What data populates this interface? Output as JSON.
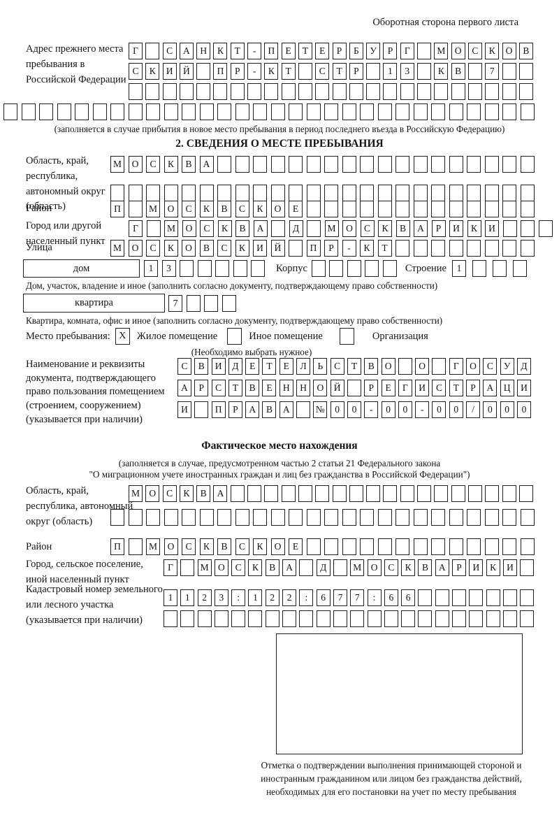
{
  "page": {
    "header_note": "Оборотная сторона первого листа"
  },
  "prev_address": {
    "label": "Адрес прежнего места пребывания в Российской Федерации",
    "row1": {
      "text": "Г САНКТ-ПЕТЕРБУРГ МОСКОВ",
      "cells": 24
    },
    "row2": {
      "text": "СКИЙ ПР-КТ СТР 13 КВ 7",
      "cells": 24
    },
    "row3": {
      "text": "",
      "cells": 24
    },
    "row4": {
      "text": "",
      "cells": 30
    },
    "note": "(заполняется в случае прибытия в новое место пребывания в период последнего въезда в Российскую Федерацию)"
  },
  "section2": {
    "title": "2. СВЕДЕНИЯ О МЕСТЕ ПРЕБЫВАНИЯ",
    "region": {
      "label": "Область, край, республика, автономный округ (область)",
      "row1": {
        "text": "МОСКВА",
        "cells": 24
      },
      "row2": {
        "text": "",
        "cells": 24
      }
    },
    "district": {
      "label": "Район",
      "row": {
        "text": "П МОСКВСКОЕ",
        "cells": 24
      }
    },
    "city": {
      "label": "Город или другой населенный пункт",
      "row": {
        "text": "Г МОСКВА Д МОСКВАРИКИ",
        "cells": 24
      }
    },
    "street": {
      "label": "Улица",
      "row": {
        "text": "МОСКОВСКИЙ ПР-КТ",
        "cells": 24
      }
    },
    "house": {
      "box_label": "дом",
      "row": {
        "text": "13",
        "cells": 7
      },
      "korpus_label": "Корпус",
      "korpus_row": {
        "text": "",
        "cells": 5
      },
      "stroenie_label": "Строение",
      "stroenie_row": {
        "text": "1",
        "cells": 4
      },
      "caption": "Дом, участок, владение и иное (заполнить согласно документу, подтверждающему право собственности)"
    },
    "apartment": {
      "box_label": "квартира",
      "row": {
        "text": "7",
        "cells": 4
      },
      "caption": "Квартира, комната, офис и иное (заполнить согласно документу, подтверждающему право собственности)"
    },
    "stay_type": {
      "label": "Место пребывания:",
      "options": [
        {
          "label": "Жилое помещение",
          "mark": "X"
        },
        {
          "label": "Иное помещение",
          "mark": ""
        },
        {
          "label": "Организация",
          "mark": ""
        }
      ],
      "note": "(Необходимо выбрать нужное)"
    },
    "document": {
      "label": "Наименование и реквизиты документа, подтверждающего право пользования помещением (строением, сооружением) (указывается при наличии)",
      "row1": {
        "text": "СВИДЕТЕЛЬСТВО О ГОСУД",
        "cells": 21
      },
      "row2": {
        "text": "АРСТВЕННОЙ РЕГИСТРАЦИ",
        "cells": 21
      },
      "row3": {
        "text": "И ПРАВА №00-00-00/000",
        "cells": 21
      }
    }
  },
  "actual_location": {
    "title": "Фактическое место нахождения",
    "note_line1": "(заполняется в случае, предусмотренном частью 2 статьи 21 Федерального закона",
    "note_line2": "\"О миграционном учете иностранных граждан и лиц без гражданства в Российской Федерации\")",
    "region": {
      "label": "Область, край, республика, автономный округ (область)",
      "row1": {
        "text": "МОСКВА",
        "cells": 24
      },
      "row2": {
        "text": "",
        "cells": 24
      }
    },
    "district": {
      "label": "Район",
      "row": {
        "text": "П МОСКВСКОЕ",
        "cells": 24
      }
    },
    "city": {
      "label": "Город, сельское поселение, иной населенный пункт",
      "row": {
        "text": "Г МОСКВА Д МОСКВАРИКИ",
        "cells": 22
      }
    },
    "cadastral": {
      "label": "Кадастровый номер земельного или лесного участка (указывается при наличии)",
      "row1": {
        "text": "1123:122:677:66",
        "cells": 22
      },
      "row2": {
        "text": "",
        "cells": 22
      }
    }
  },
  "stamp": {
    "caption": "Отметка о подтверждении выполнения принимающей стороной и иностранным гражданином или лицом без гражданства действий, необходимых для его постановки на учет по месту пребывания"
  }
}
